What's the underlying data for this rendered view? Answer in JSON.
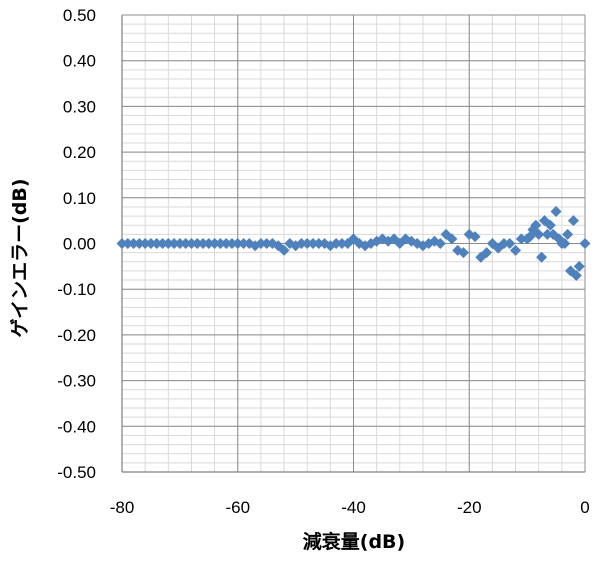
{
  "chart_data": {
    "type": "scatter",
    "title": "",
    "xlabel": "減衰量(dB)",
    "ylabel": "ゲインエラー(dB)",
    "xlim": [
      -80,
      0
    ],
    "ylim": [
      -0.5,
      0.5
    ],
    "x_ticks": [
      -80,
      -60,
      -40,
      -20,
      0
    ],
    "x_tick_labels": [
      "-80",
      "-60",
      "-40",
      "-20",
      "0"
    ],
    "y_ticks": [
      0.5,
      0.4,
      0.3,
      0.2,
      0.1,
      0.0,
      -0.1,
      -0.2,
      -0.3,
      -0.4,
      -0.5
    ],
    "y_tick_labels": [
      "0.50",
      "0.40",
      "0.30",
      "0.20",
      "0.10",
      "0.00",
      "-0.10",
      "-0.20",
      "-0.30",
      "-0.40",
      "-0.50"
    ],
    "grid": true,
    "marker": "diamond",
    "color": "#4f81bd",
    "series": [
      {
        "points": [
          [
            -80,
            0
          ],
          [
            -79,
            0
          ],
          [
            -78,
            0
          ],
          [
            -77,
            0
          ],
          [
            -76,
            0
          ],
          [
            -75,
            0
          ],
          [
            -74,
            0
          ],
          [
            -73,
            0
          ],
          [
            -72,
            0
          ],
          [
            -71,
            0
          ],
          [
            -70,
            0
          ],
          [
            -69,
            0
          ],
          [
            -68,
            0
          ],
          [
            -67,
            0
          ],
          [
            -66,
            0
          ],
          [
            -65,
            0
          ],
          [
            -64,
            0
          ],
          [
            -63,
            0
          ],
          [
            -62,
            0
          ],
          [
            -61,
            0
          ],
          [
            -60,
            0
          ],
          [
            -59,
            0
          ],
          [
            -58,
            0
          ],
          [
            -57,
            -0.005
          ],
          [
            -56,
            0
          ],
          [
            -55,
            0
          ],
          [
            -54,
            0
          ],
          [
            -53,
            -0.005
          ],
          [
            -52,
            -0.015
          ],
          [
            -51,
            0
          ],
          [
            -50,
            -0.005
          ],
          [
            -49,
            0
          ],
          [
            -48,
            0
          ],
          [
            -47,
            0
          ],
          [
            -46,
            0
          ],
          [
            -45,
            0
          ],
          [
            -44,
            -0.005
          ],
          [
            -43,
            0
          ],
          [
            -42,
            0
          ],
          [
            -41,
            0
          ],
          [
            -40,
            0.01
          ],
          [
            -39,
            0
          ],
          [
            -38,
            -0.005
          ],
          [
            -37,
            0
          ],
          [
            -36,
            0.005
          ],
          [
            -35,
            0.01
          ],
          [
            -34,
            0.005
          ],
          [
            -33,
            0.01
          ],
          [
            -32,
            0
          ],
          [
            -31,
            0.01
          ],
          [
            -30,
            0.005
          ],
          [
            -29,
            0
          ],
          [
            -28,
            -0.005
          ],
          [
            -27,
            0
          ],
          [
            -26,
            0.005
          ],
          [
            -25,
            0
          ],
          [
            -24,
            0.02
          ],
          [
            -23,
            0.01
          ],
          [
            -22,
            -0.015
          ],
          [
            -21,
            -0.02
          ],
          [
            -20,
            0.02
          ],
          [
            -19,
            0.015
          ],
          [
            -18,
            -0.03
          ],
          [
            -17,
            -0.02
          ],
          [
            -16,
            0
          ],
          [
            -15,
            -0.01
          ],
          [
            -14,
            0
          ],
          [
            -13,
            0
          ],
          [
            -12,
            -0.015
          ],
          [
            -11,
            0.01
          ],
          [
            -10,
            0.01
          ],
          [
            -9.5,
            0.015
          ],
          [
            -9,
            0.03
          ],
          [
            -8.5,
            0.04
          ],
          [
            -8,
            0.02
          ],
          [
            -7.5,
            -0.03
          ],
          [
            -7,
            0.05
          ],
          [
            -6.5,
            0.02
          ],
          [
            -6,
            0.04
          ],
          [
            -5.5,
            0.02
          ],
          [
            -5,
            0.07
          ],
          [
            -4.5,
            0.01
          ],
          [
            -4,
            0
          ],
          [
            -3.5,
            0
          ],
          [
            -3,
            0.02
          ],
          [
            -2.5,
            -0.06
          ],
          [
            -2,
            0.05
          ],
          [
            -1.5,
            -0.07
          ],
          [
            -1,
            -0.05
          ],
          [
            0,
            0
          ]
        ]
      }
    ]
  }
}
